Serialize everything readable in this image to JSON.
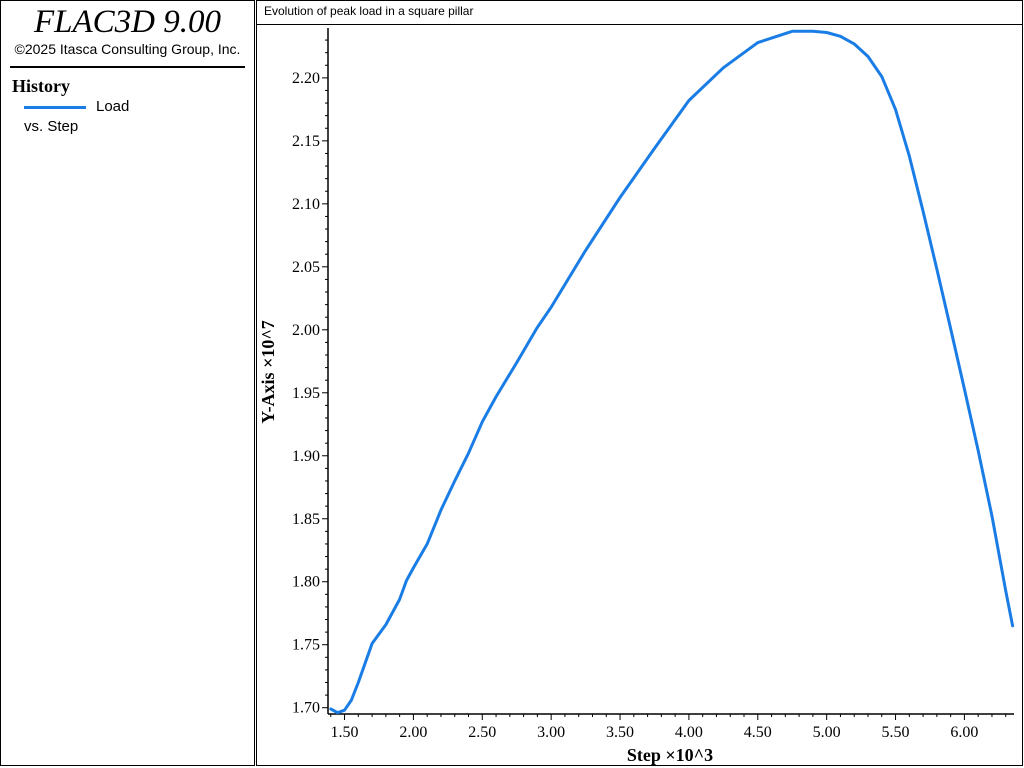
{
  "sidebar": {
    "app_title": "FLAC3D 9.00",
    "copyright": "©2025 Itasca Consulting Group, Inc.",
    "history_heading": "History",
    "legend": {
      "series_label": "Load",
      "vs_label": "vs. Step",
      "line_color": "#1a7de6"
    }
  },
  "chart_data": {
    "type": "line",
    "title": "Evolution of peak load in a square pillar",
    "xlabel": "Step ×10^3",
    "ylabel": "Y-Axis ×10^7",
    "xlim": [
      1.38,
      6.36
    ],
    "ylim": [
      1.695,
      2.238
    ],
    "x_ticks": [
      "1.50",
      "2.00",
      "2.50",
      "3.00",
      "3.50",
      "4.00",
      "4.50",
      "5.00",
      "5.50",
      "6.00"
    ],
    "y_ticks": [
      "1.70",
      "1.75",
      "1.80",
      "1.85",
      "1.90",
      "1.95",
      "2.00",
      "2.05",
      "2.10",
      "2.15",
      "2.20"
    ],
    "grid": false,
    "series": [
      {
        "name": "Load",
        "color": "#1a7de6",
        "x": [
          1.4,
          1.45,
          1.5,
          1.55,
          1.6,
          1.7,
          1.8,
          1.9,
          1.95,
          2.0,
          2.1,
          2.2,
          2.3,
          2.4,
          2.5,
          2.6,
          2.75,
          2.9,
          3.0,
          3.25,
          3.5,
          3.75,
          4.0,
          4.25,
          4.5,
          4.75,
          4.9,
          5.0,
          5.1,
          5.2,
          5.3,
          5.4,
          5.5,
          5.6,
          5.7,
          5.8,
          5.9,
          6.0,
          6.1,
          6.2,
          6.3,
          6.35
        ],
        "y": [
          1.699,
          1.696,
          1.698,
          1.706,
          1.72,
          1.751,
          1.766,
          1.786,
          1.801,
          1.811,
          1.83,
          1.857,
          1.88,
          1.902,
          1.927,
          1.947,
          1.974,
          2.002,
          2.018,
          2.063,
          2.105,
          2.144,
          2.182,
          2.208,
          2.228,
          2.237,
          2.237,
          2.236,
          2.233,
          2.227,
          2.217,
          2.201,
          2.175,
          2.138,
          2.094,
          2.048,
          2.001,
          1.953,
          1.904,
          1.852,
          1.793,
          1.765
        ]
      }
    ]
  }
}
